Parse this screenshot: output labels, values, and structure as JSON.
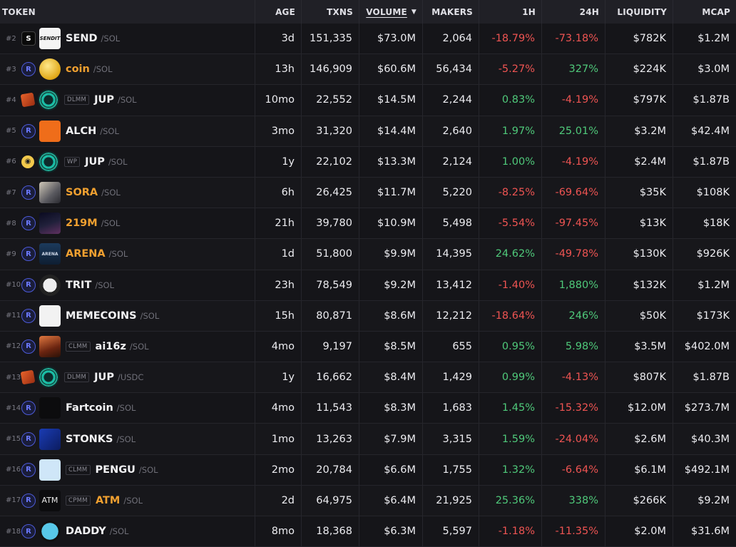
{
  "headers": {
    "token": "TOKEN",
    "age": "AGE",
    "txns": "TXNS",
    "volume": "VOLUME",
    "makers": "MAKERS",
    "h1": "1H",
    "h24": "24H",
    "liquidity": "LIQUIDITY",
    "mcap": "MCAP"
  },
  "sort_indicator": "▼",
  "colors": {
    "positive": "#4fc97a",
    "negative": "#ee5452",
    "highlight_symbol": "#f0a030"
  },
  "rows": [
    {
      "rank": "#2",
      "dex_icon": "send-dex-icon",
      "avatar_icon": "send-logo-icon",
      "avatar_text": "SENDIT",
      "badge": "",
      "symbol": "SEND",
      "pair": "/SOL",
      "highlight": false,
      "age": "3d",
      "txns": "151,335",
      "volume": "$73.0M",
      "makers": "2,064",
      "h1": "-18.79%",
      "h24": "-73.18%",
      "liquidity": "$782K",
      "mcap": "$1.2M"
    },
    {
      "rank": "#3",
      "dex_icon": "raydium-icon",
      "avatar_icon": "coin-logo-icon",
      "avatar_text": "",
      "badge": "",
      "symbol": "coin",
      "pair": "/SOL",
      "highlight": true,
      "age": "13h",
      "txns": "146,909",
      "volume": "$60.6M",
      "makers": "56,434",
      "h1": "-5.27%",
      "h24": "327%",
      "liquidity": "$224K",
      "mcap": "$3.0M"
    },
    {
      "rank": "#4",
      "dex_icon": "meteora-icon",
      "avatar_icon": "jup-logo-icon",
      "avatar_text": "",
      "badge": "DLMM",
      "symbol": "JUP",
      "pair": "/SOL",
      "highlight": false,
      "age": "10mo",
      "txns": "22,552",
      "volume": "$14.5M",
      "makers": "2,244",
      "h1": "0.83%",
      "h24": "-4.19%",
      "liquidity": "$797K",
      "mcap": "$1.87B"
    },
    {
      "rank": "#5",
      "dex_icon": "raydium-icon",
      "avatar_icon": "alch-logo-icon",
      "avatar_text": "",
      "badge": "",
      "symbol": "ALCH",
      "pair": "/SOL",
      "highlight": false,
      "age": "3mo",
      "txns": "31,320",
      "volume": "$14.4M",
      "makers": "2,640",
      "h1": "1.97%",
      "h24": "25.01%",
      "liquidity": "$3.2M",
      "mcap": "$42.4M"
    },
    {
      "rank": "#6",
      "dex_icon": "whirlpool-icon",
      "avatar_icon": "jup-logo-icon",
      "avatar_text": "",
      "badge": "WP",
      "symbol": "JUP",
      "pair": "/SOL",
      "highlight": false,
      "age": "1y",
      "txns": "22,102",
      "volume": "$13.3M",
      "makers": "2,124",
      "h1": "1.00%",
      "h24": "-4.19%",
      "liquidity": "$2.4M",
      "mcap": "$1.87B"
    },
    {
      "rank": "#7",
      "dex_icon": "raydium-icon",
      "avatar_icon": "sora-logo-icon",
      "avatar_text": "",
      "badge": "",
      "symbol": "SORA",
      "pair": "/SOL",
      "highlight": true,
      "age": "6h",
      "txns": "26,425",
      "volume": "$11.7M",
      "makers": "5,220",
      "h1": "-8.25%",
      "h24": "-69.64%",
      "liquidity": "$35K",
      "mcap": "$108K"
    },
    {
      "rank": "#8",
      "dex_icon": "raydium-icon",
      "avatar_icon": "219m-logo-icon",
      "avatar_text": "",
      "badge": "",
      "symbol": "219M",
      "pair": "/SOL",
      "highlight": true,
      "age": "21h",
      "txns": "39,780",
      "volume": "$10.9M",
      "makers": "5,498",
      "h1": "-5.54%",
      "h24": "-97.45%",
      "liquidity": "$13K",
      "mcap": "$18K"
    },
    {
      "rank": "#9",
      "dex_icon": "raydium-icon",
      "avatar_icon": "arena-logo-icon",
      "avatar_text": "ARENA",
      "badge": "",
      "symbol": "ARENA",
      "pair": "/SOL",
      "highlight": true,
      "age": "1d",
      "txns": "51,800",
      "volume": "$9.9M",
      "makers": "14,395",
      "h1": "24.62%",
      "h24": "-49.78%",
      "liquidity": "$130K",
      "mcap": "$926K"
    },
    {
      "rank": "#10",
      "dex_icon": "raydium-icon",
      "avatar_icon": "trit-logo-icon",
      "avatar_text": "",
      "badge": "",
      "symbol": "TRIT",
      "pair": "/SOL",
      "highlight": false,
      "age": "23h",
      "txns": "78,549",
      "volume": "$9.2M",
      "makers": "13,412",
      "h1": "-1.40%",
      "h24": "1,880%",
      "liquidity": "$132K",
      "mcap": "$1.2M"
    },
    {
      "rank": "#11",
      "dex_icon": "raydium-icon",
      "avatar_icon": "memecoins-logo-icon",
      "avatar_text": "",
      "badge": "",
      "symbol": "MEMECOINS",
      "pair": "/SOL",
      "highlight": false,
      "age": "15h",
      "txns": "80,871",
      "volume": "$8.6M",
      "makers": "12,212",
      "h1": "-18.64%",
      "h24": "246%",
      "liquidity": "$50K",
      "mcap": "$173K"
    },
    {
      "rank": "#12",
      "dex_icon": "raydium-icon",
      "avatar_icon": "ai16z-logo-icon",
      "avatar_text": "",
      "badge": "CLMM",
      "symbol": "ai16z",
      "pair": "/SOL",
      "highlight": false,
      "age": "4mo",
      "txns": "9,197",
      "volume": "$8.5M",
      "makers": "655",
      "h1": "0.95%",
      "h24": "5.98%",
      "liquidity": "$3.5M",
      "mcap": "$402.0M"
    },
    {
      "rank": "#13",
      "dex_icon": "meteora-icon",
      "avatar_icon": "jup-logo-icon",
      "avatar_text": "",
      "badge": "DLMM",
      "symbol": "JUP",
      "pair": "/USDC",
      "highlight": false,
      "age": "1y",
      "txns": "16,662",
      "volume": "$8.4M",
      "makers": "1,429",
      "h1": "0.99%",
      "h24": "-4.13%",
      "liquidity": "$807K",
      "mcap": "$1.87B"
    },
    {
      "rank": "#14",
      "dex_icon": "raydium-icon",
      "avatar_icon": "fartcoin-logo-icon",
      "avatar_text": "",
      "badge": "",
      "symbol": "Fartcoin",
      "pair": "/SOL",
      "highlight": false,
      "age": "4mo",
      "txns": "11,543",
      "volume": "$8.3M",
      "makers": "1,683",
      "h1": "1.45%",
      "h24": "-15.32%",
      "liquidity": "$12.0M",
      "mcap": "$273.7M"
    },
    {
      "rank": "#15",
      "dex_icon": "raydium-icon",
      "avatar_icon": "stonks-logo-icon",
      "avatar_text": "",
      "badge": "",
      "symbol": "STONKS",
      "pair": "/SOL",
      "highlight": false,
      "age": "1mo",
      "txns": "13,263",
      "volume": "$7.9M",
      "makers": "3,315",
      "h1": "1.59%",
      "h24": "-24.04%",
      "liquidity": "$2.6M",
      "mcap": "$40.3M"
    },
    {
      "rank": "#16",
      "dex_icon": "raydium-icon",
      "avatar_icon": "pengu-logo-icon",
      "avatar_text": "",
      "badge": "CLMM",
      "symbol": "PENGU",
      "pair": "/SOL",
      "highlight": false,
      "age": "2mo",
      "txns": "20,784",
      "volume": "$6.6M",
      "makers": "1,755",
      "h1": "1.32%",
      "h24": "-6.64%",
      "liquidity": "$6.1M",
      "mcap": "$492.1M"
    },
    {
      "rank": "#17",
      "dex_icon": "raydium-icon",
      "avatar_icon": "atm-logo-icon",
      "avatar_text": "ATM",
      "badge": "CPMM",
      "symbol": "ATM",
      "pair": "/SOL",
      "highlight": true,
      "age": "2d",
      "txns": "64,975",
      "volume": "$6.4M",
      "makers": "21,925",
      "h1": "25.36%",
      "h24": "338%",
      "liquidity": "$266K",
      "mcap": "$9.2M"
    },
    {
      "rank": "#18",
      "dex_icon": "raydium-icon",
      "avatar_icon": "daddy-logo-icon",
      "avatar_text": "",
      "badge": "",
      "symbol": "DADDY",
      "pair": "/SOL",
      "highlight": false,
      "age": "8mo",
      "txns": "18,368",
      "volume": "$6.3M",
      "makers": "5,597",
      "h1": "-1.18%",
      "h24": "-11.35%",
      "liquidity": "$2.0M",
      "mcap": "$31.6M"
    }
  ]
}
